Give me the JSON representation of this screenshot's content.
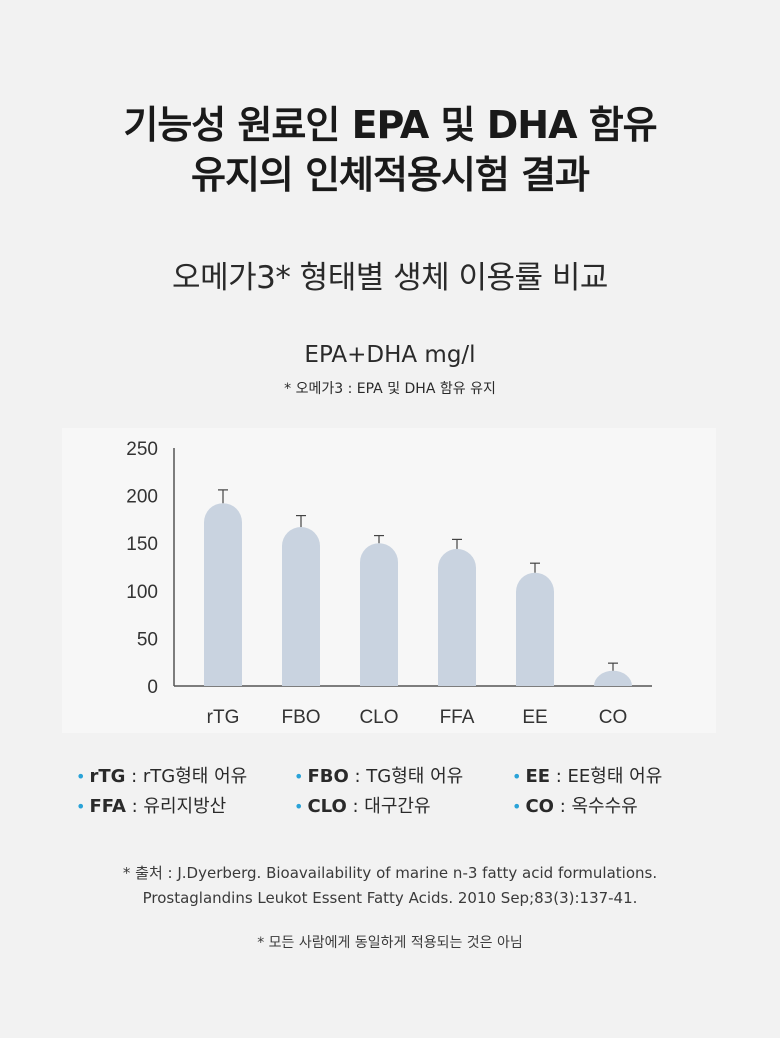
{
  "header": {
    "title_line1": "기능성 원료인 EPA 및 DHA 함유",
    "title_line2": "유지의 인체적용시험 결과",
    "subtitle": "오메가3* 형태별 생체 이용률 비교"
  },
  "chart_data": {
    "type": "bar",
    "title": "EPA+DHA mg/l",
    "subtitle": "* 오메가3 : EPA 및 DHA 함유 유지",
    "xlabel": "",
    "ylabel": "",
    "categories": [
      "rTG",
      "FBO",
      "CLO",
      "FFA",
      "EE",
      "CO"
    ],
    "values": [
      192,
      167,
      150,
      144,
      119,
      16
    ],
    "errors": [
      14,
      12,
      8,
      10,
      10,
      8
    ],
    "ylim": [
      0,
      250
    ],
    "yticks": [
      0,
      50,
      100,
      150,
      200,
      250
    ],
    "grid": false,
    "bar_color": "#c9d3e0",
    "error_color": "#444444"
  },
  "legend": {
    "items": [
      {
        "key": "rTG",
        "desc": ": rTG형태 어유"
      },
      {
        "key": "FBO",
        "desc": ": TG형태 어유"
      },
      {
        "key": "EE",
        "desc": ": EE형태 어유"
      },
      {
        "key": "FFA",
        "desc": ": 유리지방산"
      },
      {
        "key": "CLO",
        "desc": ": 대구간유"
      },
      {
        "key": "CO",
        "desc": ": 옥수수유"
      }
    ],
    "bullet": "•",
    "bullet_color": "#2aa3d8"
  },
  "footer": {
    "source_line1": "* 출처 : J.Dyerberg. Bioavailability of marine n-3 fatty acid formulations.",
    "source_line2": "Prostaglandins Leukot Essent Fatty Acids. 2010 Sep;83(3):137-41.",
    "disclaimer": "* 모든 사람에게 동일하게 적용되는 것은 아님"
  }
}
